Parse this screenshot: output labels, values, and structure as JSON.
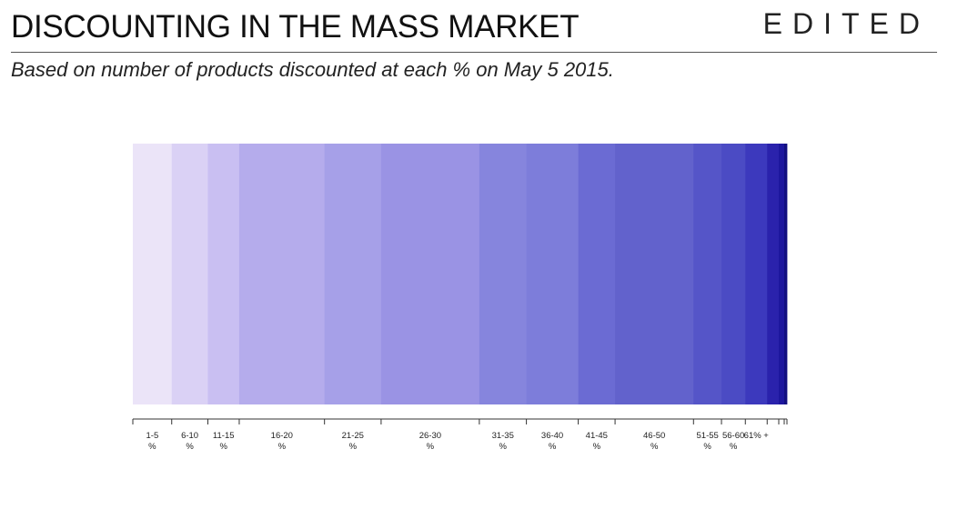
{
  "header": {
    "title": "DISCOUNTING IN THE MASS MARKET",
    "brand": "EDITED",
    "subtitle": "Based on number of products discounted at each % on May 5 2015."
  },
  "chart_data": {
    "type": "bar",
    "orientation": "horizontal-stacked",
    "title": "DISCOUNTING IN THE MASS MARKET",
    "subtitle": "Based on number of products discounted at each % on May 5 2015.",
    "unit": "share of discounted products (fraction of total)",
    "categories": [
      "1-5 %",
      "6-10 %",
      "11-15 %",
      "16-20 %",
      "21-25 %",
      "26-30 %",
      "31-35 %",
      "36-40 %",
      "41-45 %",
      "46-50 %",
      "51-55 %",
      "56-60 %",
      "61% +",
      "",
      "",
      ""
    ],
    "tick_labels": [
      [
        "1-5",
        "%"
      ],
      [
        "6-10",
        "%"
      ],
      [
        "11-15",
        "%"
      ],
      [
        "16-20",
        "%"
      ],
      [
        "21-25",
        "%"
      ],
      [
        "26-30",
        "%"
      ],
      [
        "31-35",
        "%"
      ],
      [
        "36-40",
        "%"
      ],
      [
        "41-45",
        "%"
      ],
      [
        "46-50",
        "%"
      ],
      [
        "51-55",
        "%"
      ],
      [
        "56-60",
        "%"
      ],
      [
        "61% +",
        ""
      ],
      [
        "",
        ""
      ],
      [
        "",
        ""
      ],
      [
        "",
        ""
      ]
    ],
    "values": [
      0.057,
      0.053,
      0.046,
      0.125,
      0.083,
      0.144,
      0.069,
      0.076,
      0.054,
      0.115,
      0.041,
      0.035,
      0.032,
      0.017,
      0.008,
      0.004
    ],
    "colors": [
      "#ebe4f8",
      "#dad1f5",
      "#c9bff2",
      "#b5acec",
      "#a6a0e8",
      "#9a93e4",
      "#8685dd",
      "#7d7dda",
      "#6b6bd3",
      "#6262cc",
      "#5555c8",
      "#4b4bc4",
      "#3c39bd",
      "#2a22ac",
      "#1d179e",
      "#121080"
    ],
    "legend": "none",
    "grid": false
  }
}
